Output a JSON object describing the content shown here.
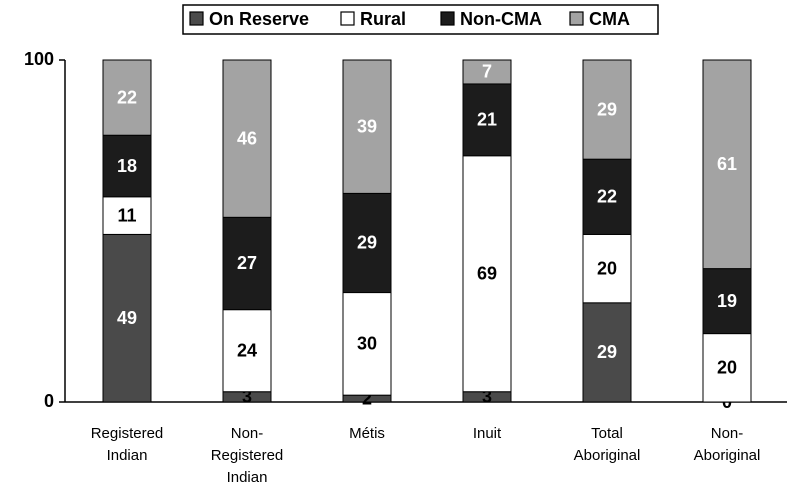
{
  "chart_data": {
    "type": "stacked-bar",
    "categories": [
      "Registered\nIndian",
      "Non-\nRegistered\nIndian",
      "Métis",
      "Inuit",
      "Total\nAboriginal",
      "Non-\nAboriginal"
    ],
    "series": [
      {
        "name": "On Reserve",
        "color": "#4a4a4a",
        "values": [
          49,
          3,
          2,
          3,
          29,
          0
        ]
      },
      {
        "name": "Rural",
        "color": "#ffffff",
        "values": [
          11,
          24,
          30,
          69,
          20,
          20
        ]
      },
      {
        "name": "Non-CMA",
        "color": "#1c1c1c",
        "values": [
          18,
          27,
          29,
          21,
          22,
          19
        ]
      },
      {
        "name": "CMA",
        "color": "#a3a3a3",
        "values": [
          22,
          46,
          39,
          7,
          29,
          61
        ]
      }
    ],
    "ylim": [
      0,
      100
    ],
    "yticks": [
      0,
      100
    ],
    "legend": "top"
  }
}
